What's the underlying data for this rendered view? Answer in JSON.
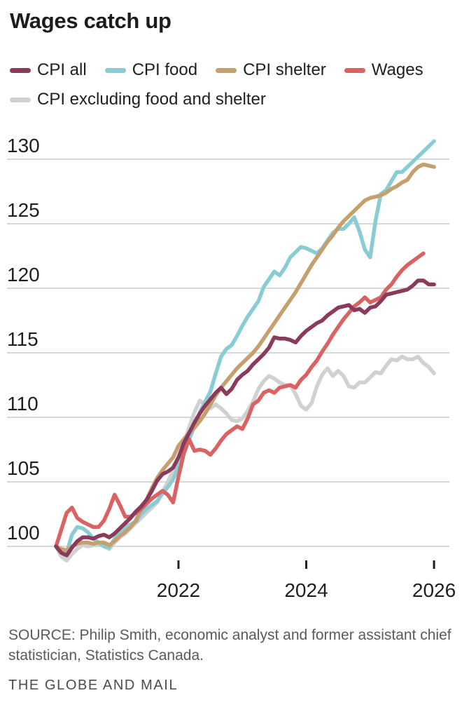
{
  "title": "Wages catch up",
  "legend": {
    "items": [
      {
        "label": "CPI all",
        "color": "#8a3a5a"
      },
      {
        "label": "CPI food",
        "color": "#8accd4"
      },
      {
        "label": "CPI shelter",
        "color": "#c5a06e"
      },
      {
        "label": "Wages",
        "color": "#d96262"
      },
      {
        "label": "CPI excluding food and shelter",
        "color": "#d1d1d1"
      }
    ]
  },
  "chart_data": {
    "type": "line",
    "title": "Wages catch up",
    "x_unit": "month",
    "x_tick_labels": [
      "2022",
      "2024",
      "2026"
    ],
    "x_tick_month_indices": [
      23,
      47,
      71
    ],
    "y_ticks": [
      100,
      105,
      110,
      115,
      120,
      125,
      130
    ],
    "ylim": [
      98,
      132
    ],
    "grid": "horizontal",
    "legend_position": "top",
    "series": [
      {
        "name": "CPI excluding food and shelter",
        "color": "#d1d1d1",
        "values": [
          100.0,
          99.2,
          98.9,
          99.4,
          99.8,
          100.1,
          100.0,
          100.1,
          100.2,
          100.0,
          99.8,
          100.3,
          100.7,
          101.0,
          101.4,
          101.8,
          102.2,
          102.6,
          103.0,
          103.4,
          104.2,
          105.0,
          105.9,
          106.8,
          108.0,
          109.2,
          110.4,
          111.3,
          111.0,
          110.7,
          111.0,
          110.7,
          110.3,
          109.8,
          109.7,
          109.9,
          110.5,
          111.2,
          112.2,
          112.8,
          113.2,
          113.0,
          112.7,
          112.5,
          112.5,
          111.8,
          110.9,
          110.6,
          111.1,
          112.4,
          113.3,
          113.8,
          113.2,
          113.6,
          113.2,
          112.4,
          112.3,
          112.7,
          112.7,
          113.1,
          113.5,
          113.4,
          114.0,
          114.5,
          114.4,
          114.7,
          114.5,
          114.5,
          114.7,
          114.2,
          113.9,
          113.4
        ]
      },
      {
        "name": "CPI food",
        "color": "#8accd4",
        "values": [
          100.0,
          99.6,
          99.5,
          100.9,
          101.5,
          101.4,
          101.1,
          100.6,
          100.3,
          100.0,
          99.9,
          100.6,
          101.1,
          101.5,
          101.7,
          101.9,
          102.5,
          102.9,
          103.2,
          103.5,
          104.1,
          104.6,
          105.2,
          106.2,
          107.3,
          108.3,
          109.3,
          110.4,
          111.2,
          112.0,
          113.4,
          114.7,
          115.3,
          115.6,
          116.3,
          117.1,
          117.8,
          118.4,
          119.0,
          120.1,
          120.7,
          121.3,
          121.0,
          121.6,
          122.4,
          122.8,
          123.2,
          123.1,
          122.9,
          122.7,
          123.1,
          123.7,
          124.3,
          124.6,
          124.6,
          125.0,
          125.5,
          124.4,
          123.0,
          122.4,
          125.2,
          127.3,
          127.6,
          128.3,
          129.0,
          129.0,
          129.4,
          129.8,
          130.2,
          130.6,
          131.0,
          131.4
        ]
      },
      {
        "name": "CPI shelter",
        "color": "#c5a06e",
        "values": [
          100.0,
          99.8,
          99.7,
          100.0,
          100.2,
          100.3,
          100.3,
          100.2,
          100.3,
          100.3,
          100.1,
          100.4,
          100.8,
          101.1,
          101.5,
          102.0,
          102.9,
          103.6,
          104.5,
          105.3,
          105.9,
          106.4,
          106.9,
          107.8,
          108.3,
          108.8,
          109.2,
          109.7,
          110.3,
          111.0,
          111.7,
          112.3,
          112.8,
          113.3,
          113.8,
          114.2,
          114.6,
          115.0,
          115.5,
          116.1,
          116.7,
          117.3,
          117.9,
          118.5,
          119.1,
          119.7,
          120.4,
          121.1,
          121.8,
          122.4,
          123.0,
          123.6,
          124.1,
          124.7,
          125.2,
          125.6,
          126.0,
          126.4,
          126.8,
          127.0,
          127.1,
          127.2,
          127.4,
          127.7,
          127.9,
          128.2,
          128.4,
          129.0,
          129.4,
          129.6,
          129.5,
          129.4
        ]
      },
      {
        "name": "Wages",
        "color": "#d96262",
        "values": [
          100.0,
          101.3,
          102.6,
          103.0,
          102.2,
          101.9,
          101.7,
          101.5,
          101.5,
          102.0,
          102.9,
          104.0,
          103.2,
          102.3,
          102.3,
          102.6,
          102.9,
          103.3,
          103.7,
          104.0,
          104.3,
          104.0,
          103.4,
          105.4,
          107.2,
          108.3,
          107.4,
          107.5,
          107.4,
          107.1,
          107.6,
          108.2,
          108.7,
          109.0,
          109.3,
          109.1,
          109.9,
          111.0,
          111.3,
          111.9,
          112.1,
          111.9,
          112.3,
          112.4,
          112.5,
          112.3,
          112.9,
          113.3,
          113.9,
          114.4,
          115.1,
          115.7,
          116.4,
          117.0,
          117.6,
          118.1,
          118.6,
          118.9,
          119.3,
          118.9,
          119.1,
          119.3,
          119.9,
          120.3,
          120.9,
          121.4,
          121.8,
          122.1,
          122.4,
          122.7
        ]
      },
      {
        "name": "CPI all",
        "color": "#8a3a5a",
        "values": [
          100.0,
          99.5,
          99.3,
          99.9,
          100.4,
          100.7,
          100.7,
          100.6,
          100.8,
          100.9,
          100.7,
          101.0,
          101.4,
          101.8,
          102.2,
          102.7,
          103.1,
          103.6,
          104.3,
          105.1,
          105.6,
          105.8,
          106.1,
          106.9,
          108.0,
          108.8,
          109.6,
          110.3,
          110.9,
          111.4,
          111.9,
          112.3,
          111.8,
          112.2,
          112.9,
          113.3,
          113.6,
          114.1,
          114.5,
          114.9,
          115.4,
          116.2,
          116.1,
          116.1,
          116.0,
          115.8,
          116.3,
          116.7,
          117.0,
          117.3,
          117.5,
          117.9,
          118.2,
          118.5,
          118.6,
          118.7,
          118.3,
          118.4,
          118.1,
          118.5,
          118.6,
          119.0,
          119.5,
          119.6,
          119.7,
          119.8,
          119.9,
          120.2,
          120.6,
          120.6,
          120.3,
          120.3
        ]
      }
    ]
  },
  "footer": {
    "source": "SOURCE: Philip Smith, economic analyst and former assistant chief statistician, Statistics Canada.",
    "credit": "THE GLOBE AND MAIL"
  }
}
